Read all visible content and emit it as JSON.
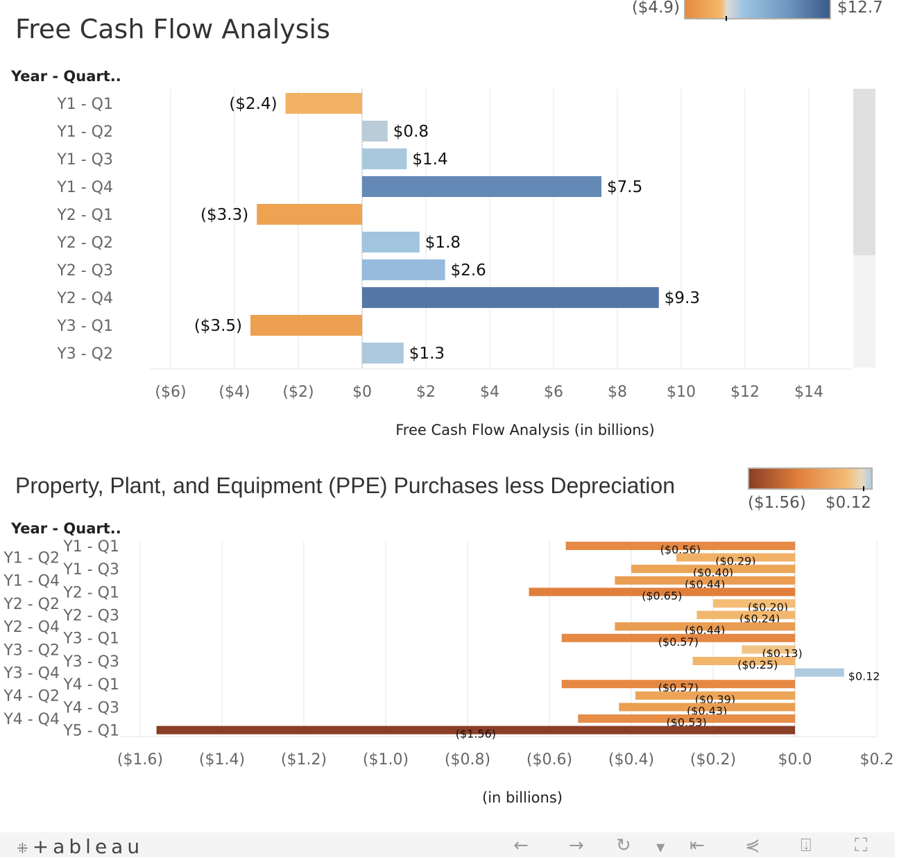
{
  "chart_data": [
    {
      "type": "bar",
      "orientation": "horizontal",
      "title": "Free Cash Flow Analysis",
      "row_header": "Year - Quart..",
      "xlabel": "Free Cash Flow Analysis (in billions)",
      "categories": [
        "Y1 - Q1",
        "Y1 - Q2",
        "Y1 - Q3",
        "Y1 - Q4",
        "Y2 - Q1",
        "Y2 - Q2",
        "Y2 - Q3",
        "Y2 - Q4",
        "Y3 - Q1",
        "Y3 - Q2"
      ],
      "values": [
        -2.4,
        0.8,
        1.4,
        7.5,
        -3.3,
        1.8,
        2.6,
        9.3,
        -3.5,
        1.3
      ],
      "data_labels": [
        "($2.4)",
        "$0.8",
        "$1.4",
        "$7.5",
        "($3.3)",
        "$1.8",
        "$2.6",
        "$9.3",
        "($3.5)",
        "$1.3"
      ],
      "xlim": [
        -6,
        15
      ],
      "xticks": [
        -6,
        -4,
        -2,
        0,
        2,
        4,
        6,
        8,
        10,
        12,
        14
      ],
      "xtick_labels": [
        "($6)",
        "($4)",
        "($2)",
        "$0",
        "$2",
        "$4",
        "$6",
        "$8",
        "$10",
        "$12",
        "$14"
      ],
      "grid": true,
      "color_legend": {
        "min_label": "($4.9)",
        "max_label": "$12.7",
        "min": -4.9,
        "max": 12.7,
        "colors": [
          "#e58a3f",
          "#f5b96c",
          "#dcdcd8",
          "#9ec4e0",
          "#3a5a88"
        ]
      },
      "legend_placement": "top-right",
      "scrollbar": true
    },
    {
      "type": "bar",
      "orientation": "horizontal",
      "title": "Property, Plant, and Equipment (PPE) Purchases less Depreciation",
      "row_header": "Year - Quart..",
      "xlabel": "(in billions)",
      "categories": [
        "Y1 - Q1",
        "Y1 - Q2",
        "Y1 - Q3",
        "Y1 - Q4",
        "Y2 - Q1",
        "Y2 - Q2",
        "Y2 - Q3",
        "Y2 - Q4",
        "Y3 - Q1",
        "Y3 - Q2",
        "Y3 - Q3",
        "Y3 - Q4",
        "Y4 - Q1",
        "Y4 - Q2",
        "Y4 - Q3",
        "Y4 - Q4",
        "Y5 - Q1"
      ],
      "values": [
        -0.56,
        -0.29,
        -0.4,
        -0.44,
        -0.65,
        -0.2,
        -0.24,
        -0.44,
        -0.57,
        -0.13,
        -0.25,
        0.12,
        -0.57,
        -0.39,
        -0.43,
        -0.53,
        -1.56
      ],
      "data_labels": [
        "($0.56)",
        "($0.29)",
        "($0.40)",
        "($0.44)",
        "($0.65)",
        "($0.20)",
        "($0.24)",
        "($0.44)",
        "($0.57)",
        "($0.13)",
        "($0.25)",
        "$0.12",
        "($0.57)",
        "($0.39)",
        "($0.43)",
        "($0.53)",
        "($1.56)"
      ],
      "xlim": [
        -1.6,
        0.2
      ],
      "xticks": [
        -1.6,
        -1.4,
        -1.2,
        -1.0,
        -0.8,
        -0.6,
        -0.4,
        -0.2,
        0.0,
        0.2
      ],
      "xtick_labels": [
        "($1.6)",
        "($1.4)",
        "($1.2)",
        "($1.0)",
        "($0.8)",
        "($0.6)",
        "($0.4)",
        "($0.2)",
        "$0.0",
        "$0.2"
      ],
      "grid": true,
      "color_legend": {
        "min_label": "($1.56)",
        "max_label": "$0.12",
        "min": -1.56,
        "max": 0.12,
        "colors": [
          "#8b3e26",
          "#e07f3c",
          "#f4bc74",
          "#afcbe0"
        ]
      },
      "legend_placement": "top-right"
    }
  ],
  "footer": {
    "logo": "+ableau",
    "icons": [
      "undo-icon",
      "redo-icon",
      "revert-icon",
      "revert-dropdown-icon",
      "reset-icon",
      "share-icon",
      "download-icon",
      "fullscreen-icon"
    ]
  }
}
